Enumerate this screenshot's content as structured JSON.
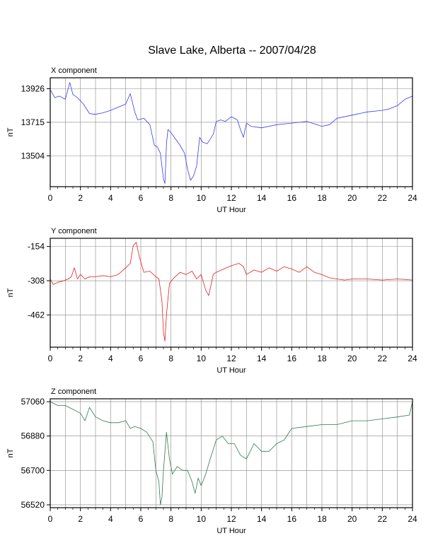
{
  "title": "Slave Lake, Alberta -- 2007/04/28",
  "colors": {
    "x": "#3a3af0",
    "y": "#e02020",
    "z": "#2e7a4e"
  },
  "chart_data": [
    {
      "type": "line",
      "title": "X component",
      "xlabel": "UT Hour",
      "ylabel": "nT",
      "xlim": [
        0,
        24
      ],
      "ylim": [
        13310,
        13995
      ],
      "x_ticks": [
        0,
        2,
        4,
        6,
        8,
        10,
        12,
        14,
        16,
        18,
        20,
        22,
        24
      ],
      "y_ticks": [
        13504,
        13715,
        13926
      ],
      "grid": true,
      "series": [
        {
          "color_key": "x",
          "x": [
            0,
            0.3,
            0.6,
            1.0,
            1.3,
            1.5,
            1.8,
            2.2,
            2.6,
            3.0,
            3.5,
            4.0,
            4.5,
            5.0,
            5.3,
            5.6,
            5.8,
            6.2,
            6.6,
            6.9,
            7.1,
            7.3,
            7.5,
            7.6,
            7.7,
            7.8,
            8.0,
            8.3,
            8.6,
            8.9,
            9.1,
            9.3,
            9.5,
            9.7,
            9.9,
            10.1,
            10.4,
            10.8,
            11.0,
            11.3,
            11.6,
            12.0,
            12.4,
            12.6,
            12.8,
            13.0,
            13.3,
            14.0,
            15.0,
            16.0,
            17.0,
            18.0,
            18.5,
            19.0,
            20.0,
            21.0,
            22.0,
            22.5,
            23.0,
            23.5,
            24.0
          ],
          "y": [
            13920,
            13870,
            13880,
            13860,
            13965,
            13890,
            13870,
            13830,
            13770,
            13765,
            13775,
            13790,
            13810,
            13830,
            13895,
            13780,
            13730,
            13740,
            13700,
            13570,
            13560,
            13520,
            13360,
            13330,
            13580,
            13670,
            13650,
            13610,
            13570,
            13520,
            13420,
            13350,
            13380,
            13440,
            13620,
            13590,
            13580,
            13640,
            13720,
            13730,
            13720,
            13750,
            13730,
            13670,
            13620,
            13710,
            13690,
            13680,
            13700,
            13710,
            13720,
            13690,
            13700,
            13740,
            13760,
            13780,
            13790,
            13800,
            13820,
            13860,
            13880
          ]
        }
      ]
    },
    {
      "type": "line",
      "title": "Y component",
      "xlabel": "UT Hour",
      "ylabel": "nT",
      "xlim": [
        0,
        24
      ],
      "ylim": [
        -607,
        -117
      ],
      "x_ticks": [
        0,
        2,
        4,
        6,
        8,
        10,
        12,
        14,
        16,
        18,
        20,
        22,
        24
      ],
      "y_ticks": [
        -154,
        -308,
        -462
      ],
      "grid": true,
      "series": [
        {
          "color_key": "y",
          "x": [
            0,
            0.2,
            0.5,
            0.8,
            1.0,
            1.2,
            1.4,
            1.6,
            1.8,
            2.0,
            2.3,
            2.6,
            3.0,
            3.5,
            4.0,
            4.5,
            5.0,
            5.3,
            5.5,
            5.7,
            5.9,
            6.2,
            6.6,
            7.0,
            7.2,
            7.4,
            7.5,
            7.6,
            7.7,
            7.9,
            8.2,
            8.6,
            9.0,
            9.4,
            9.7,
            10.0,
            10.3,
            10.5,
            10.8,
            11.0,
            11.5,
            12.0,
            12.5,
            12.8,
            13.0,
            13.5,
            14.0,
            14.5,
            15.0,
            15.5,
            16.0,
            16.5,
            17.0,
            17.5,
            18.0,
            18.5,
            19.0,
            19.5,
            20.0,
            21.0,
            22.0,
            23.0,
            24.0
          ],
          "y": [
            -300,
            -325,
            -315,
            -310,
            -305,
            -300,
            -290,
            -250,
            -300,
            -280,
            -300,
            -290,
            -290,
            -285,
            -290,
            -280,
            -250,
            -230,
            -150,
            -135,
            -200,
            -270,
            -265,
            -290,
            -300,
            -400,
            -540,
            -580,
            -460,
            -320,
            -295,
            -270,
            -280,
            -265,
            -300,
            -280,
            -350,
            -375,
            -280,
            -270,
            -255,
            -240,
            -230,
            -245,
            -280,
            -260,
            -270,
            -250,
            -265,
            -245,
            -255,
            -270,
            -245,
            -270,
            -280,
            -295,
            -300,
            -305,
            -300,
            -300,
            -305,
            -300,
            -305
          ]
        }
      ]
    },
    {
      "type": "line",
      "title": "Z component",
      "xlabel": "UT Hour",
      "ylabel": "nT",
      "xlim": [
        0,
        24
      ],
      "ylim": [
        56505,
        57075
      ],
      "x_ticks": [
        0,
        2,
        4,
        6,
        8,
        10,
        12,
        14,
        16,
        18,
        20,
        22,
        24
      ],
      "y_ticks": [
        56520,
        56700,
        56880,
        57060
      ],
      "grid": true,
      "series": [
        {
          "color_key": "z",
          "x": [
            0,
            0.5,
            1.0,
            1.5,
            2.0,
            2.3,
            2.6,
            3.0,
            3.5,
            4.0,
            4.5,
            5.0,
            5.3,
            5.6,
            6.0,
            6.4,
            6.8,
            7.0,
            7.2,
            7.3,
            7.4,
            7.5,
            7.7,
            7.9,
            8.1,
            8.4,
            8.8,
            9.1,
            9.4,
            9.6,
            9.8,
            10.0,
            10.3,
            10.6,
            11.0,
            11.4,
            11.8,
            12.2,
            12.6,
            13.0,
            13.5,
            14.0,
            14.5,
            15.0,
            15.5,
            16.0,
            17.0,
            18.0,
            19.0,
            20.0,
            21.0,
            22.0,
            23.0,
            23.8,
            24.0
          ],
          "y": [
            57060,
            57040,
            57040,
            57020,
            57000,
            56960,
            57030,
            56980,
            56960,
            56950,
            56950,
            56960,
            56920,
            56930,
            56920,
            56900,
            56850,
            56700,
            56640,
            56520,
            56560,
            56700,
            56900,
            56760,
            56680,
            56720,
            56700,
            56700,
            56640,
            56580,
            56660,
            56620,
            56680,
            56760,
            56860,
            56880,
            56840,
            56840,
            56780,
            56760,
            56840,
            56800,
            56800,
            56840,
            56860,
            56920,
            56930,
            56940,
            56940,
            56960,
            56960,
            56970,
            56980,
            56990,
            57060
          ]
        }
      ]
    }
  ]
}
